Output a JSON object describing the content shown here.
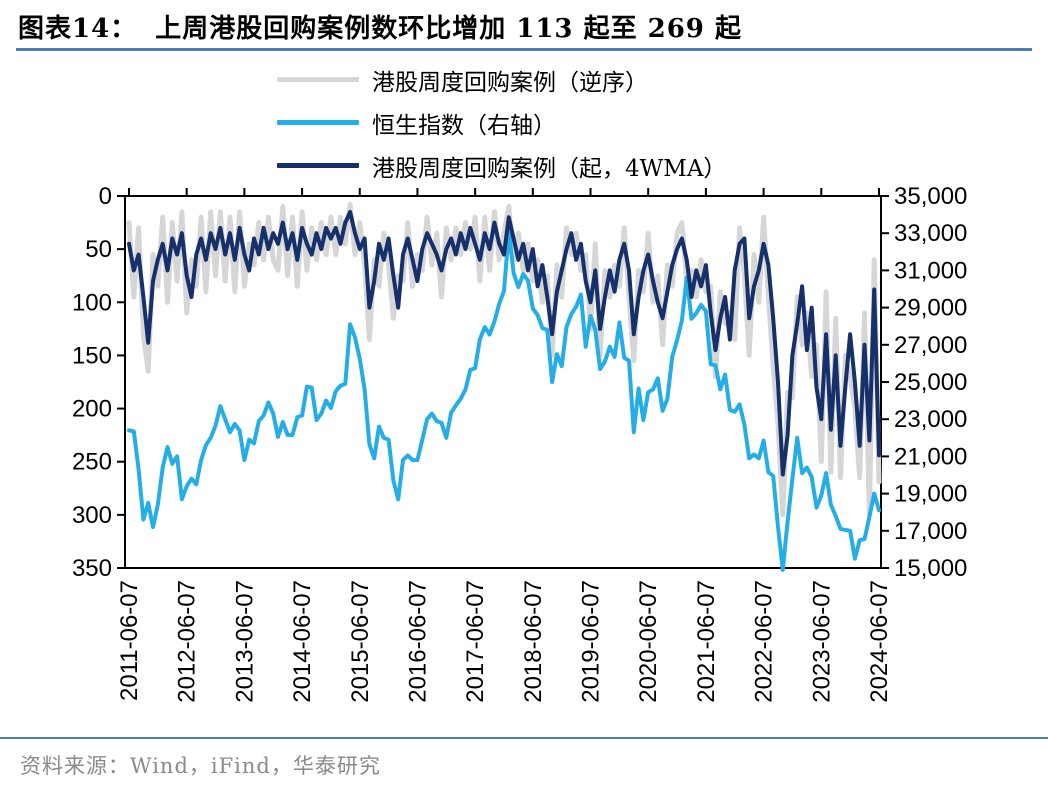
{
  "title": {
    "prefix": "图表14：",
    "main": "上周港股回购案例数环比增加 113 起至 269 起"
  },
  "legend": [
    {
      "label": "港股周度回购案例（逆序）",
      "color": "#d6d6d6"
    },
    {
      "label": "恒生指数（右轴）",
      "color": "#25ade8"
    },
    {
      "label": "港股周度回购案例（起，4WMA）",
      "color": "#15306a"
    }
  ],
  "footer": {
    "text": "资料来源：Wind，iFind，华泰研究"
  },
  "chart_data": {
    "type": "line",
    "title": "上周港股回购案例数环比增加 113 起至 269 起",
    "x_start": "2011-06",
    "x_step_months": 1,
    "x_tick_labels": [
      "2011-06-07",
      "2012-06-07",
      "2013-06-07",
      "2014-06-07",
      "2015-06-07",
      "2016-06-07",
      "2017-06-07",
      "2018-06-07",
      "2019-06-07",
      "2020-06-07",
      "2021-06-07",
      "2022-06-07",
      "2023-06-07",
      "2024-06-07"
    ],
    "left_axis": {
      "reversed": true,
      "range": [
        0,
        350
      ],
      "ticks": [
        0,
        50,
        100,
        150,
        200,
        250,
        300,
        350
      ]
    },
    "right_axis": {
      "range": [
        15000,
        35000
      ],
      "ticks": [
        35000,
        33000,
        31000,
        29000,
        27000,
        25000,
        23000,
        21000,
        19000,
        17000,
        15000
      ]
    },
    "grid": false,
    "legend_position": "top",
    "latest_weekly_buybacks": 269,
    "weekly_change": 113,
    "series": [
      {
        "name": "港股周度回购案例（逆序）",
        "axis": "left",
        "color": "#d6d6d6",
        "width": 5,
        "values": [
          25,
          95,
          30,
          130,
          165,
          55,
          85,
          20,
          100,
          25,
          80,
          15,
          110,
          60,
          85,
          20,
          90,
          15,
          75,
          15,
          80,
          20,
          90,
          15,
          85,
          45,
          65,
          25,
          60,
          20,
          60,
          70,
          10,
          75,
          20,
          85,
          15,
          70,
          30,
          60,
          25,
          55,
          20,
          55,
          20,
          45,
          8,
          55,
          25,
          65,
          135,
          60,
          85,
          35,
          65,
          115,
          75,
          80,
          25,
          85,
          55,
          70,
          20,
          65,
          35,
          95,
          30,
          60,
          30,
          55,
          25,
          50,
          20,
          80,
          20,
          70,
          15,
          60,
          35,
          10,
          60,
          35,
          70,
          45,
          80,
          60,
          100,
          75,
          150,
          65,
          95,
          30,
          55,
          35,
          70,
          55,
          125,
          45,
          150,
          70,
          95,
          65,
          85,
          30,
          95,
          155,
          70,
          90,
          35,
          100,
          75,
          140,
          65,
          85,
          35,
          25,
          80,
          70,
          95,
          60,
          90,
          85,
          170,
          90,
          120,
          110,
          135,
          30,
          75,
          150,
          55,
          100,
          20,
          95,
          160,
          215,
          300,
          185,
          190,
          95,
          140,
          110,
          170,
          140,
          250,
          90,
          260,
          115,
          265,
          150,
          170,
          200,
          265,
          110,
          300,
          60,
          269
        ]
      },
      {
        "name": "恒生指数（右轴）",
        "axis": "right",
        "color": "#25ade8",
        "width": 4,
        "values": [
          22400,
          22350,
          20300,
          17600,
          18500,
          17200,
          18400,
          20400,
          21500,
          20600,
          21000,
          18700,
          19400,
          19800,
          19500,
          20800,
          21600,
          22000,
          22650,
          23700,
          23000,
          22300,
          22750,
          22400,
          20800,
          21900,
          21700,
          22900,
          23200,
          23900,
          23300,
          22050,
          22850,
          22150,
          22150,
          23100,
          23200,
          24750,
          24700,
          22950,
          23300,
          24000,
          23600,
          24500,
          24800,
          24900,
          28100,
          27400,
          26250,
          24600,
          21650,
          20900,
          22600,
          22000,
          21900,
          19700,
          18700,
          20800,
          21050,
          20800,
          20800,
          21900,
          23000,
          23300,
          22900,
          22800,
          22000,
          23350,
          23750,
          24100,
          24600,
          25650,
          25750,
          27300,
          27950,
          27550,
          28250,
          29200,
          29900,
          33100,
          30850,
          30100,
          30800,
          30450,
          28950,
          28600,
          27900,
          27800,
          25000,
          26500,
          25850,
          27950,
          28650,
          29050,
          29700,
          26900,
          28550,
          27800,
          25700,
          26100,
          26900,
          26350,
          28200,
          26300,
          26150,
          22300,
          24650,
          22950,
          24450,
          24600,
          25200,
          23450,
          24100,
          26350,
          27250,
          28300,
          30600,
          28400,
          28700,
          29150,
          28800,
          25950,
          25900,
          24600,
          25400,
          23500,
          23400,
          23800,
          22700,
          20900,
          21100,
          20900,
          21850,
          20150,
          19950,
          17200,
          14900,
          17500,
          19800,
          22000,
          20100,
          20400,
          19900,
          18250,
          18900,
          20100,
          18400,
          17800,
          17100,
          17050,
          17000,
          15500,
          16500,
          16550,
          17750,
          19000,
          18100
        ]
      },
      {
        "name": "港股周度回购案例（起，4WMA）",
        "axis": "left",
        "color": "#15306a",
        "width": 4,
        "values": [
          45,
          70,
          55,
          95,
          138,
          80,
          60,
          45,
          70,
          40,
          55,
          35,
          75,
          95,
          55,
          40,
          60,
          35,
          50,
          30,
          55,
          35,
          60,
          30,
          55,
          70,
          40,
          55,
          30,
          50,
          35,
          45,
          25,
          50,
          35,
          60,
          30,
          45,
          55,
          35,
          50,
          30,
          40,
          30,
          45,
          25,
          15,
          35,
          50,
          40,
          105,
          80,
          45,
          60,
          40,
          75,
          105,
          55,
          40,
          60,
          80,
          50,
          35,
          45,
          55,
          70,
          50,
          40,
          55,
          35,
          50,
          30,
          45,
          60,
          35,
          50,
          25,
          45,
          55,
          20,
          40,
          60,
          45,
          70,
          50,
          85,
          65,
          95,
          130,
          90,
          70,
          50,
          35,
          60,
          45,
          80,
          100,
          70,
          125,
          95,
          70,
          90,
          60,
          45,
          70,
          130,
          95,
          70,
          55,
          80,
          100,
          115,
          90,
          65,
          50,
          40,
          60,
          95,
          70,
          85,
          65,
          110,
          145,
          115,
          95,
          135,
          70,
          45,
          40,
          115,
          85,
          70,
          45,
          65,
          115,
          175,
          262,
          225,
          150,
          120,
          85,
          145,
          105,
          180,
          210,
          130,
          220,
          150,
          235,
          180,
          130,
          175,
          235,
          140,
          230,
          88,
          244
        ]
      }
    ]
  }
}
